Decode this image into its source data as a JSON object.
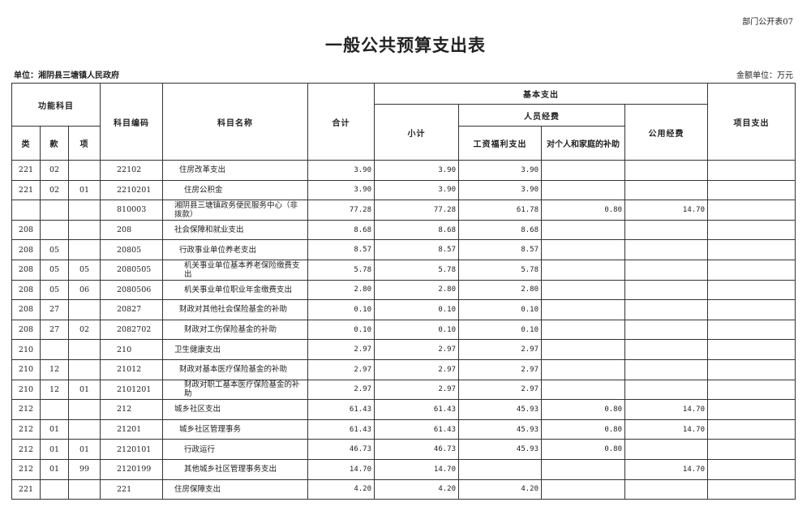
{
  "doc_tag": "部门公开表07",
  "title": "一般公共预算支出表",
  "unit": "单位：湘阴县三塘镇人民政府",
  "money_unit": "金额单位：万元",
  "headers": {
    "func": "功能科目",
    "lei": "类",
    "kuan": "款",
    "xiang": "项",
    "code": "科目编码",
    "name": "科目名称",
    "total": "合计",
    "basic": "基本支出",
    "subtotal": "小计",
    "personnel": "人员经费",
    "wage": "工资福利支出",
    "subsidy": "对个人和家庭的补助",
    "public": "公用经费",
    "project": "项目支出"
  },
  "rows": [
    [
      "221",
      "02",
      "",
      "22102",
      "住房改革支出",
      "3.90",
      "3.90",
      "3.90",
      "",
      "",
      "",
      1
    ],
    [
      "221",
      "02",
      "01",
      "2210201",
      "住房公积金",
      "3.90",
      "3.90",
      "3.90",
      "",
      "",
      "",
      2
    ],
    [
      "",
      "",
      "",
      "810003",
      "湘阴县三塘镇政务便民服务中心（非拨款）",
      "77.28",
      "77.28",
      "61.78",
      "0.80",
      "14.70",
      "",
      0
    ],
    [
      "208",
      "",
      "",
      "208",
      "社会保障和就业支出",
      "8.68",
      "8.68",
      "8.68",
      "",
      "",
      "",
      0
    ],
    [
      "208",
      "05",
      "",
      "20805",
      "行政事业单位养老支出",
      "8.57",
      "8.57",
      "8.57",
      "",
      "",
      "",
      1
    ],
    [
      "208",
      "05",
      "05",
      "2080505",
      "机关事业单位基本养老保险缴费支出",
      "5.78",
      "5.78",
      "5.78",
      "",
      "",
      "",
      2
    ],
    [
      "208",
      "05",
      "06",
      "2080506",
      "机关事业单位职业年金缴费支出",
      "2.80",
      "2.80",
      "2.80",
      "",
      "",
      "",
      2
    ],
    [
      "208",
      "27",
      "",
      "20827",
      "财政对其他社会保险基金的补助",
      "0.10",
      "0.10",
      "0.10",
      "",
      "",
      "",
      1
    ],
    [
      "208",
      "27",
      "02",
      "2082702",
      "财政对工伤保险基金的补助",
      "0.10",
      "0.10",
      "0.10",
      "",
      "",
      "",
      2
    ],
    [
      "210",
      "",
      "",
      "210",
      "卫生健康支出",
      "2.97",
      "2.97",
      "2.97",
      "",
      "",
      "",
      0
    ],
    [
      "210",
      "12",
      "",
      "21012",
      "财政对基本医疗保险基金的补助",
      "2.97",
      "2.97",
      "2.97",
      "",
      "",
      "",
      1
    ],
    [
      "210",
      "12",
      "01",
      "2101201",
      "财政对职工基本医疗保险基金的补助",
      "2.97",
      "2.97",
      "2.97",
      "",
      "",
      "",
      2
    ],
    [
      "212",
      "",
      "",
      "212",
      "城乡社区支出",
      "61.43",
      "61.43",
      "45.93",
      "0.80",
      "14.70",
      "",
      0
    ],
    [
      "212",
      "01",
      "",
      "21201",
      "城乡社区管理事务",
      "61.43",
      "61.43",
      "45.93",
      "0.80",
      "14.70",
      "",
      1
    ],
    [
      "212",
      "01",
      "01",
      "2120101",
      "行政运行",
      "46.73",
      "46.73",
      "45.93",
      "0.80",
      "",
      "",
      2
    ],
    [
      "212",
      "01",
      "99",
      "2120199",
      "其他城乡社区管理事务支出",
      "14.70",
      "14.70",
      "",
      "",
      "14.70",
      "",
      2
    ],
    [
      "221",
      "",
      "",
      "221",
      "住房保障支出",
      "4.20",
      "4.20",
      "4.20",
      "",
      "",
      "",
      0
    ]
  ]
}
